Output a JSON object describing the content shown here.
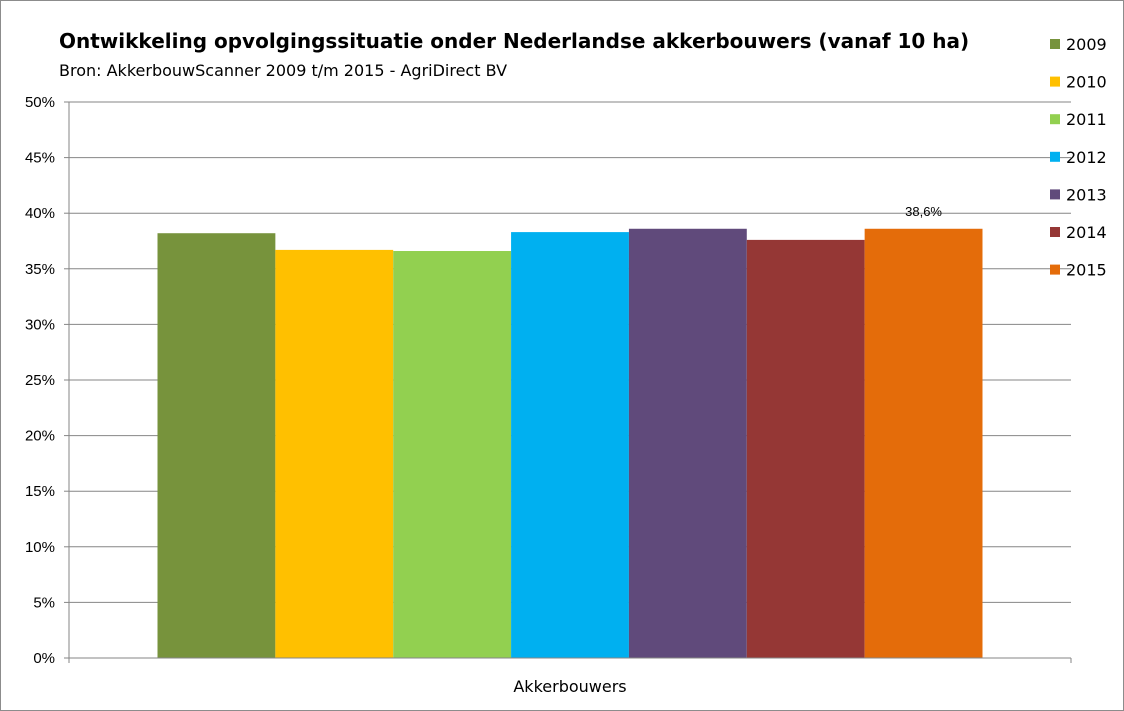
{
  "chart_data": {
    "type": "bar",
    "title": "Ontwikkeling opvolgingssituatie onder Nederlandse akkerbouwers (vanaf 10 ha)",
    "subtitle": "Bron: AkkerbouwScanner 2009 t/m 2015 - AgriDirect BV",
    "categories": [
      "Akkerbouwers"
    ],
    "series": [
      {
        "name": "2009",
        "values": [
          38.2
        ],
        "color": "#77933C"
      },
      {
        "name": "2010",
        "values": [
          36.7
        ],
        "color": "#FFC000"
      },
      {
        "name": "2011",
        "values": [
          36.6
        ],
        "color": "#92D050"
      },
      {
        "name": "2012",
        "values": [
          38.3
        ],
        "color": "#00B0F0"
      },
      {
        "name": "2013",
        "values": [
          38.6
        ],
        "color": "#604A7B"
      },
      {
        "name": "2014",
        "values": [
          37.6
        ],
        "color": "#953735"
      },
      {
        "name": "2015",
        "values": [
          38.6
        ],
        "color": "#E46C0A"
      }
    ],
    "data_labels": [
      {
        "series": "2015",
        "text": "38,6%"
      }
    ],
    "ylim": [
      0,
      50
    ],
    "y_ticks": [
      "0%",
      "5%",
      "10%",
      "15%",
      "20%",
      "25%",
      "30%",
      "35%",
      "40%",
      "45%",
      "50%"
    ],
    "grid": true,
    "legend_position": "right"
  }
}
